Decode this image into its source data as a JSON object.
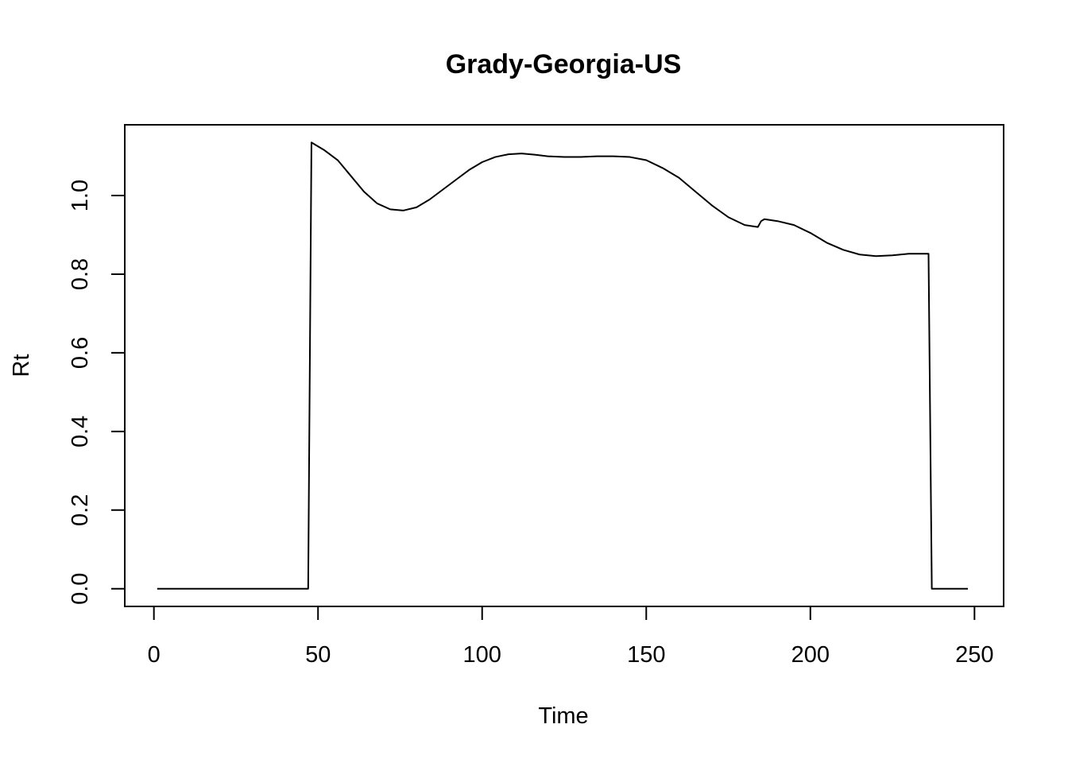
{
  "chart_data": {
    "type": "line",
    "title": "Grady-Georgia-US",
    "xlabel": "Time",
    "ylabel": "Rt",
    "xlim": [
      -8.88,
      258.88
    ],
    "ylim": [
      -0.045,
      1.18
    ],
    "xticks": [
      0,
      50,
      100,
      150,
      200,
      250
    ],
    "yticks": [
      0.0,
      0.2,
      0.4,
      0.6,
      0.8,
      1.0
    ],
    "xtick_labels": [
      "0",
      "50",
      "100",
      "150",
      "200",
      "250"
    ],
    "ytick_labels": [
      "0.0",
      "0.2",
      "0.4",
      "0.6",
      "0.8",
      "1.0"
    ],
    "grid": false,
    "legend": "none",
    "line_color": "#000000",
    "series": [
      {
        "x": [
          1,
          47,
          48,
          52,
          56,
          60,
          64,
          68,
          72,
          76,
          80,
          84,
          88,
          92,
          96,
          100,
          104,
          108,
          112,
          116,
          120,
          125,
          130,
          135,
          140,
          145,
          150,
          155,
          160,
          165,
          170,
          175,
          180,
          184,
          185,
          186,
          190,
          195,
          200,
          205,
          210,
          215,
          220,
          225,
          230,
          236,
          237,
          248
        ],
        "y": [
          0,
          0,
          1.135,
          1.115,
          1.09,
          1.05,
          1.01,
          0.98,
          0.965,
          0.962,
          0.97,
          0.99,
          1.015,
          1.04,
          1.065,
          1.085,
          1.098,
          1.105,
          1.107,
          1.104,
          1.1,
          1.098,
          1.098,
          1.1,
          1.1,
          1.098,
          1.09,
          1.07,
          1.045,
          1.01,
          0.975,
          0.945,
          0.925,
          0.92,
          0.935,
          0.94,
          0.935,
          0.925,
          0.905,
          0.88,
          0.862,
          0.85,
          0.846,
          0.848,
          0.852,
          0.852,
          0,
          0
        ]
      }
    ]
  }
}
